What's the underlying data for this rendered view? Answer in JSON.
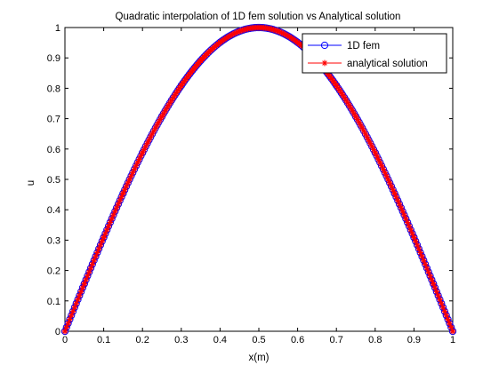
{
  "chart_data": {
    "type": "line",
    "title": "Quadratic interpolation of 1D fem solution vs Analytical solution",
    "xlabel": "x(m)",
    "ylabel": "u",
    "xlim": [
      0,
      1
    ],
    "ylim": [
      0,
      1
    ],
    "xticks": [
      "0",
      "0.1",
      "0.2",
      "0.3",
      "0.4",
      "0.5",
      "0.6",
      "0.7",
      "0.8",
      "0.9",
      "1"
    ],
    "yticks": [
      "0",
      "0.1",
      "0.2",
      "0.3",
      "0.4",
      "0.5",
      "0.6",
      "0.7",
      "0.8",
      "0.9",
      "1"
    ],
    "grid": false,
    "legend_position": "top-right",
    "x": [
      0,
      0.05,
      0.1,
      0.15,
      0.2,
      0.25,
      0.3,
      0.35,
      0.4,
      0.45,
      0.5,
      0.55,
      0.6,
      0.65,
      0.7,
      0.75,
      0.8,
      0.85,
      0.9,
      0.95,
      1
    ],
    "series": [
      {
        "name": "1D fem",
        "color": "#0000ff",
        "marker": "circle",
        "values": [
          0,
          0.156,
          0.309,
          0.454,
          0.588,
          0.707,
          0.809,
          0.891,
          0.951,
          0.988,
          1,
          0.988,
          0.951,
          0.891,
          0.809,
          0.707,
          0.588,
          0.454,
          0.309,
          0.156,
          0
        ]
      },
      {
        "name": "analytical solution",
        "color": "#ff0000",
        "marker": "asterisk",
        "values": [
          0,
          0.156,
          0.309,
          0.454,
          0.588,
          0.707,
          0.809,
          0.891,
          0.951,
          0.988,
          1,
          0.988,
          0.951,
          0.891,
          0.809,
          0.707,
          0.588,
          0.454,
          0.309,
          0.156,
          0
        ]
      }
    ]
  }
}
